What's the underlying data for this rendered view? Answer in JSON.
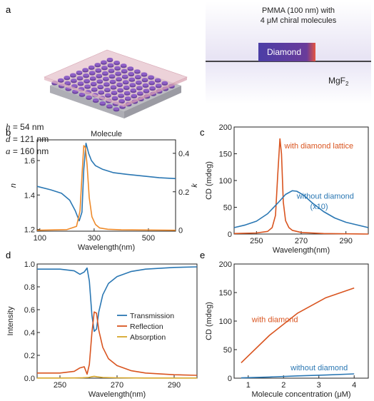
{
  "panel_labels": {
    "a": "a",
    "b": "b",
    "c": "c",
    "d": "d",
    "e": "e"
  },
  "panel_a": {
    "params": [
      {
        "sym": "h",
        "val": " = 54 nm"
      },
      {
        "sym": "d",
        "val": " = 121 nm"
      },
      {
        "sym": "a",
        "val": " = 160 nm"
      }
    ],
    "pmma_label_1": "PMMA (100 nm) with",
    "pmma_label_2": "4 μM chiral molecules",
    "diamond_label": "Diamond",
    "substrate_label": "MgF",
    "substrate_sub": "2",
    "colors": {
      "disk": "#8e5fc6",
      "substrate": "#cfcfd2",
      "pmma": "#e8cbd2",
      "diamond": "#4a3fa0",
      "accent": "#e8553f"
    }
  },
  "chart_data": [
    {
      "id": "b",
      "type": "line",
      "title": "Molecule",
      "xlabel": "Wavelength(nm)",
      "ylabel_left": "n",
      "ylabel_right": "k",
      "xlim": [
        90,
        600
      ],
      "xticks": [
        100,
        300,
        500
      ],
      "ylim_left": [
        1.19,
        1.72
      ],
      "yticks_left": [
        1.2,
        1.4,
        1.6
      ],
      "ylim_right": [
        -0.005,
        0.47
      ],
      "yticks_right": [
        0,
        0.2,
        0.4
      ],
      "series": [
        {
          "name": "n",
          "axis": "left",
          "color": "#2a77b3",
          "x": [
            90,
            140,
            180,
            210,
            230,
            245,
            255,
            262,
            270,
            280,
            290,
            305,
            330,
            370,
            420,
            480,
            540,
            600
          ],
          "y": [
            1.45,
            1.43,
            1.41,
            1.37,
            1.31,
            1.25,
            1.3,
            1.55,
            1.7,
            1.64,
            1.6,
            1.57,
            1.55,
            1.53,
            1.52,
            1.51,
            1.5,
            1.495
          ]
        },
        {
          "name": "k",
          "axis": "right",
          "color": "#ee8a2a",
          "x": [
            90,
            200,
            235,
            248,
            256,
            262,
            268,
            274,
            282,
            292,
            305,
            320,
            350,
            400,
            600
          ],
          "y": [
            0,
            0.003,
            0.02,
            0.1,
            0.3,
            0.44,
            0.43,
            0.34,
            0.17,
            0.07,
            0.03,
            0.012,
            0.005,
            0.002,
            0
          ]
        }
      ]
    },
    {
      "id": "c",
      "type": "line",
      "xlabel": "Wavelength(nm)",
      "ylabel": "CD (mdeg)",
      "xlim": [
        240,
        300
      ],
      "xticks": [
        250,
        270,
        290
      ],
      "ylim": [
        0,
        200
      ],
      "yticks": [
        0,
        50,
        100,
        150,
        200
      ],
      "series": [
        {
          "name": "with diamond lattice",
          "color": "#d9541f",
          "x": [
            240,
            250,
            255,
            257,
            258.5,
            259.5,
            260.5,
            261.2,
            262,
            263,
            264.5,
            266,
            270,
            280,
            300
          ],
          "y": [
            1,
            2,
            5,
            12,
            35,
            110,
            178,
            150,
            60,
            25,
            12,
            7,
            3,
            1,
            0
          ]
        },
        {
          "name": "without diamond",
          "name2": "(x10)",
          "color": "#2a77b3",
          "x": [
            240,
            245,
            250,
            255,
            260,
            263,
            266,
            268,
            271,
            275,
            280,
            285,
            290,
            300
          ],
          "y": [
            12,
            17,
            24,
            38,
            60,
            74,
            81,
            80,
            73,
            58,
            42,
            30,
            22,
            12
          ]
        }
      ],
      "annotations": [
        "with diamond lattice",
        "without diamond",
        "(x10)"
      ]
    },
    {
      "id": "d",
      "type": "line",
      "xlabel": "Wavelength(nm)",
      "ylabel": "Intensity",
      "xlim": [
        242,
        298
      ],
      "xticks": [
        250,
        270,
        290
      ],
      "ylim": [
        0,
        1.0
      ],
      "yticks": [
        0,
        0.2,
        0.4,
        0.6,
        0.8,
        1.0
      ],
      "legend": "right",
      "series": [
        {
          "name": "Transmission",
          "color": "#2a77b3",
          "x": [
            242,
            250,
            255,
            257,
            258.5,
            259.5,
            260.3,
            261.2,
            262,
            262.8,
            263.6,
            265,
            267,
            270,
            275,
            280,
            290,
            298
          ],
          "y": [
            0.955,
            0.955,
            0.94,
            0.91,
            0.93,
            0.965,
            0.85,
            0.55,
            0.41,
            0.43,
            0.58,
            0.73,
            0.83,
            0.89,
            0.935,
            0.955,
            0.97,
            0.975
          ]
        },
        {
          "name": "Reflection",
          "color": "#d9541f",
          "x": [
            242,
            250,
            255,
            257,
            258.5,
            259.5,
            260.3,
            261.2,
            262,
            262.8,
            263.6,
            265,
            267,
            270,
            275,
            280,
            290,
            298
          ],
          "y": [
            0.045,
            0.045,
            0.06,
            0.09,
            0.1,
            0.035,
            0.12,
            0.4,
            0.58,
            0.57,
            0.42,
            0.27,
            0.17,
            0.11,
            0.065,
            0.045,
            0.03,
            0.025
          ]
        },
        {
          "name": "Absorption",
          "color": "#d6a62a",
          "x": [
            242,
            250,
            255,
            258,
            260,
            261,
            262,
            263,
            265,
            270,
            280,
            298
          ],
          "y": [
            0.001,
            0.001,
            0.002,
            0.004,
            0.006,
            0.012,
            0.016,
            0.012,
            0.006,
            0.003,
            0.001,
            0.001
          ]
        }
      ]
    },
    {
      "id": "e",
      "type": "line",
      "xlabel": "Molecule concentration (μM)",
      "ylabel": "CD (mdeg)",
      "xlim": [
        0.6,
        4.4
      ],
      "xticks": [
        1,
        2,
        3,
        4
      ],
      "ylim": [
        0,
        200
      ],
      "yticks": [
        0,
        50,
        100,
        150,
        200
      ],
      "series": [
        {
          "name": "with diamond",
          "color": "#d9541f",
          "x": [
            0.8,
            1.6,
            2.4,
            3.2,
            4.0
          ],
          "y": [
            27,
            75,
            114,
            141,
            158
          ]
        },
        {
          "name": "without diamond",
          "color": "#2a77b3",
          "x": [
            0.8,
            1.6,
            2.4,
            3.2,
            4.0
          ],
          "y": [
            0.5,
            2,
            4,
            5.5,
            7.5
          ]
        }
      ],
      "annotations": [
        "with diamond",
        "without diamond"
      ]
    }
  ]
}
